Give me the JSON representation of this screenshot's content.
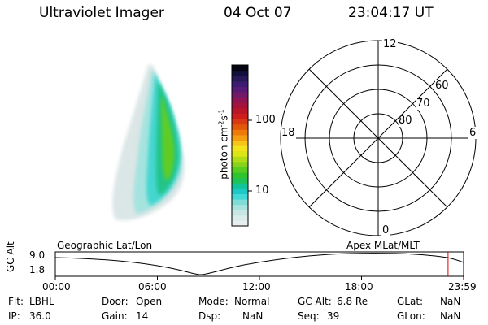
{
  "header": {
    "instrument": "Ultraviolet Imager",
    "date": "04 Oct 07",
    "time": "23:04:17 UT"
  },
  "colorbar": {
    "label": "photon cm",
    "label_exp1": "-2",
    "label_s": "s",
    "label_exp2": "-1",
    "ticks": [
      {
        "value": "100"
      },
      {
        "value": "10"
      }
    ],
    "colors": [
      "#e8f0ef",
      "#d9ecea",
      "#c6e7e4",
      "#a9e3de",
      "#7fdcd6",
      "#42d8d6",
      "#1cc8c8",
      "#12c49a",
      "#1ec256",
      "#2fc42b",
      "#59cc22",
      "#87d31c",
      "#b0dc18",
      "#dce516",
      "#f3e31c",
      "#f7c41a",
      "#f59d10",
      "#ee7a0a",
      "#e1580a",
      "#d93912",
      "#cc1f1d",
      "#bb1628",
      "#a4133c",
      "#8e1551",
      "#731a66",
      "#571b75",
      "#3b1c70",
      "#25195a",
      "#130f3c",
      "#050512"
    ]
  },
  "polar": {
    "mlt_labels": {
      "top": "12",
      "left": "18",
      "right": "6",
      "bottom": "0"
    },
    "lat_labels": [
      "60",
      "70",
      "80"
    ]
  },
  "map_labels": {
    "left": "Geographic Lat/Lon",
    "right": "Apex  MLat/MLT"
  },
  "timeline": {
    "ylabel": "GC Alt",
    "ytick_top": "9.0",
    "ytick_bottom": "1.8",
    "xticks": [
      "00:00",
      "06:00",
      "12:00",
      "18:00",
      "23:59"
    ],
    "current_time_fraction": 0.962
  },
  "info": {
    "filter_label": "Flt:",
    "filter_value": "LBHL",
    "ip_label": "IP:",
    "ip_value": "36.0",
    "door_label": "Door:",
    "door_value": "Open",
    "gain_label": "Gain:",
    "gain_value": "14",
    "mode_label": "Mode:",
    "mode_value": "Normal",
    "dsp_label": "Dsp:",
    "dsp_value": "NaN",
    "gcalt_label": "GC Alt:",
    "gcalt_value": "6.8 Re",
    "seq_label": "Seq:",
    "seq_value": "39",
    "glat_label": "GLat:",
    "glat_value": "NaN",
    "glon_label": "GLon:",
    "glon_value": "NaN"
  }
}
